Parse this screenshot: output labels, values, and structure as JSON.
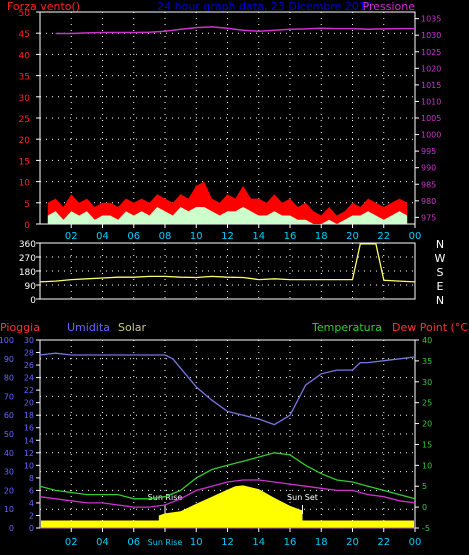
{
  "colors": {
    "background": "#000000",
    "frame": "#ffffff",
    "grid": "#ffffff",
    "title": "#0000cc",
    "wind_axis": "#ff2222",
    "pressure": "#cc33cc",
    "wind_gust": "#ff0000",
    "wind_mean": "#ccffcc",
    "direction": "#ffff66",
    "rain": "#ff3333",
    "humidity": "#6666ff",
    "humidity_line": "#7777dd",
    "solar": "#cccc88",
    "temperature": "#33cc33",
    "dew_point": "#cc33cc",
    "dew_point_label": "#ff3333",
    "sun_area": "#ffff00",
    "rain_line": "#cc66cc",
    "x_ticks": "#00ccff",
    "y_ticks_left": "#6666ff",
    "y_ticks_right_bottom": "#33cc33"
  },
  "chart_data": [
    {
      "type": "line",
      "panel": "wind-pressure",
      "title": "24 hour graph data, 23 Dicembre 2016",
      "left_axis_label": "Forza vento()",
      "right_axis_label": "Pressione",
      "x_tick_labels": [
        "02",
        "04",
        "06",
        "08",
        "10",
        "12",
        "14",
        "16",
        "18",
        "20",
        "22",
        "00"
      ],
      "left_ticks": [
        0,
        5,
        10,
        15,
        20,
        25,
        30,
        35,
        40,
        45,
        50
      ],
      "left_ylim": [
        0,
        50
      ],
      "right_ticks": [
        975,
        980,
        985,
        990,
        995,
        1000,
        1005,
        1010,
        1015,
        1020,
        1025,
        1030,
        1035
      ],
      "right_ylim": [
        973,
        1037
      ],
      "grid": true,
      "series": [
        {
          "name": "Pressione",
          "axis": "right",
          "hours": [
            1,
            2,
            3,
            4,
            5,
            6,
            7,
            8,
            9,
            10,
            11,
            12,
            13,
            14,
            15,
            16,
            17,
            18,
            19,
            20,
            21,
            22,
            23,
            24
          ],
          "values": [
            1030.5,
            1030.5,
            1030.7,
            1030.8,
            1030.8,
            1030.8,
            1030.9,
            1031.2,
            1031.8,
            1032.3,
            1032.5,
            1032.1,
            1031.5,
            1031.2,
            1031.5,
            1031.8,
            1031.9,
            1032.1,
            1032.0,
            1032.0,
            1031.8,
            1031.9,
            1032.0,
            1032.0
          ]
        },
        {
          "name": "wind gust",
          "axis": "left",
          "hours": [
            0.5,
            1,
            1.5,
            2,
            2.5,
            3,
            3.5,
            4,
            4.5,
            5,
            5.5,
            6,
            6.5,
            7,
            7.5,
            8,
            8.5,
            9,
            9.5,
            10,
            10.5,
            11,
            11.5,
            12,
            12.5,
            13,
            13.5,
            14,
            14.5,
            15,
            15.5,
            16,
            16.5,
            17,
            17.5,
            18,
            18.5,
            19,
            19.5,
            20,
            20.5,
            21,
            21.5,
            22,
            22.5,
            23,
            23.5
          ],
          "values": [
            5,
            6,
            4,
            7,
            5,
            6,
            4,
            5,
            5,
            4,
            6,
            5,
            6,
            5,
            7,
            6,
            5,
            7,
            6,
            9,
            10,
            6,
            5,
            7,
            6,
            9,
            6,
            6,
            5,
            7,
            5,
            6,
            4,
            5,
            3,
            2,
            4,
            2,
            3,
            5,
            4,
            6,
            5,
            4,
            5,
            6,
            5
          ]
        },
        {
          "name": "wind mean",
          "axis": "left",
          "hours": [
            0.5,
            1,
            1.5,
            2,
            2.5,
            3,
            3.5,
            4,
            4.5,
            5,
            5.5,
            6,
            6.5,
            7,
            7.5,
            8,
            8.5,
            9,
            9.5,
            10,
            10.5,
            11,
            11.5,
            12,
            12.5,
            13,
            13.5,
            14,
            14.5,
            15,
            15.5,
            16,
            16.5,
            17,
            17.5,
            18,
            18.5,
            19,
            19.5,
            20,
            20.5,
            21,
            21.5,
            22,
            22.5,
            23,
            23.5
          ],
          "values": [
            2,
            3,
            1,
            3,
            2,
            3,
            1,
            2,
            2,
            1,
            3,
            2,
            3,
            2,
            4,
            3,
            2,
            4,
            3,
            4,
            4,
            3,
            2,
            3,
            3,
            4,
            3,
            2,
            2,
            3,
            2,
            2,
            1,
            1,
            0,
            0,
            1,
            0,
            1,
            2,
            2,
            3,
            2,
            1,
            2,
            3,
            2
          ]
        }
      ]
    },
    {
      "type": "line",
      "panel": "wind-direction",
      "x_tick_labels": [
        "02",
        "04",
        "06",
        "08",
        "10",
        "12",
        "14",
        "16",
        "18",
        "20",
        "22",
        "00"
      ],
      "left_ticks": [
        0,
        90,
        180,
        270,
        360
      ],
      "ylim": [
        0,
        360
      ],
      "compass_labels": [
        "N",
        "W",
        "S",
        "E",
        "N"
      ],
      "grid": true,
      "series": [
        {
          "name": "direzione vento",
          "hours": [
            0,
            1,
            2,
            3,
            4,
            5,
            6,
            7,
            8,
            9,
            10,
            11,
            12,
            13,
            14,
            15,
            16,
            17,
            18,
            19,
            20,
            20.5,
            21.5,
            22,
            23,
            24
          ],
          "values": [
            110,
            115,
            125,
            130,
            135,
            140,
            140,
            145,
            145,
            140,
            138,
            145,
            140,
            138,
            125,
            130,
            125,
            125,
            125,
            125,
            125,
            355,
            355,
            120,
            115,
            110
          ]
        }
      ]
    },
    {
      "type": "line",
      "panel": "rain-humidity-temperature",
      "labels": {
        "rain": "Pioggia",
        "humidity": "Umidita",
        "solar": "Solar",
        "temperature": "Temperatura",
        "dew_point": "Dew Point (°C)",
        "sunrise": "Sun Rise",
        "sunset": "Sun Set"
      },
      "x_tick_labels": [
        "02",
        "04",
        "06",
        "08",
        "10",
        "12",
        "14",
        "16",
        "18",
        "20",
        "22",
        "00"
      ],
      "x_tick_label_08_alt": "Sun Rise",
      "humidity_ticks": [
        0,
        10,
        20,
        30,
        40,
        50,
        60,
        70,
        80,
        90,
        100
      ],
      "humidity_ylim": [
        0,
        100
      ],
      "rain_ticks": [
        0,
        2,
        4,
        6,
        8,
        10,
        12,
        14,
        16,
        18,
        20,
        22,
        24,
        26,
        28,
        30
      ],
      "rain_ylim": [
        0,
        30
      ],
      "temperature_ticks": [
        -5,
        0,
        5,
        10,
        15,
        20,
        25,
        30,
        35,
        40
      ],
      "temperature_ylim": [
        -5,
        40
      ],
      "sunrise_hour": 8,
      "sunset_hour": 16.8,
      "grid": true,
      "series": [
        {
          "name": "Umidita",
          "axis": "humidity",
          "hours": [
            0,
            1,
            2,
            3,
            4,
            5,
            6,
            7,
            8,
            8.5,
            9,
            10,
            11,
            12,
            13,
            14,
            15,
            16,
            16.5,
            17,
            18,
            19,
            20,
            20.5,
            21,
            22,
            23,
            24
          ],
          "values": [
            92,
            93,
            92,
            92,
            92,
            92,
            92,
            92,
            92,
            90,
            85,
            75,
            68,
            62,
            60,
            58,
            55,
            60,
            68,
            76,
            82,
            84,
            84,
            88,
            88,
            89,
            90,
            91
          ]
        },
        {
          "name": "Temperatura",
          "axis": "temperature",
          "hours": [
            0,
            1,
            2,
            3,
            4,
            5,
            6,
            7,
            8,
            9,
            10,
            11,
            12,
            13,
            14,
            15,
            16,
            17,
            18,
            19,
            20,
            21,
            22,
            23,
            24
          ],
          "values": [
            5,
            4,
            3.5,
            3,
            3,
            3,
            2,
            2,
            2.5,
            4,
            7,
            9,
            10,
            11,
            12,
            13,
            12.5,
            10,
            8,
            6.5,
            6,
            5,
            4,
            3,
            2
          ]
        },
        {
          "name": "Dew Point",
          "axis": "temperature",
          "hours": [
            0,
            1,
            2,
            3,
            4,
            5,
            6,
            7,
            8,
            9,
            10,
            11,
            12,
            13,
            14,
            15,
            16,
            17,
            18,
            19,
            20,
            21,
            22,
            23,
            24
          ],
          "values": [
            2.5,
            2,
            1.5,
            1,
            1,
            0.5,
            0,
            0,
            0.5,
            2,
            4,
            5,
            6,
            6.5,
            6.5,
            6,
            5.5,
            5,
            4.5,
            4,
            4,
            3,
            2.5,
            1.5,
            1
          ]
        },
        {
          "name": "Solar",
          "axis": "temperature",
          "hours": [
            7.6,
            8,
            9,
            10,
            11,
            12,
            12.5,
            13,
            14,
            15,
            16,
            16.8
          ],
          "values": [
            -2,
            -1.5,
            -1,
            0.8,
            2.5,
            4.2,
            5.0,
            5.2,
            4.3,
            2.2,
            0.3,
            -0.8
          ]
        },
        {
          "name": "Pioggia",
          "axis": "rain",
          "hours": [
            0,
            24
          ],
          "values": [
            0,
            0
          ]
        }
      ]
    }
  ]
}
